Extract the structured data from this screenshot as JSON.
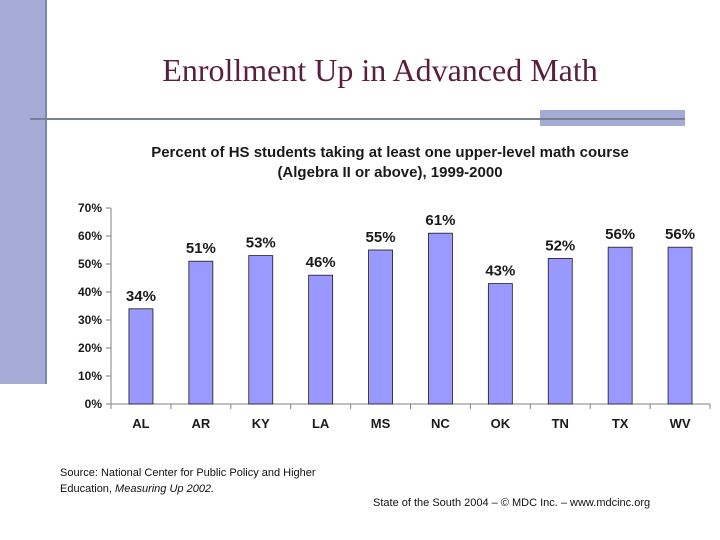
{
  "slide": {
    "title": "Enrollment Up in Advanced Math",
    "source_line1": "Source: National Center for Public Policy and Higher",
    "source_line2_prefix": "Education, ",
    "source_line2_italic": "Measuring Up 2002.",
    "footer": "State of the South 2004 – © MDC Inc. – www.mdcinc.org"
  },
  "chart_data": {
    "type": "bar",
    "title_line1": "Percent of HS students taking at least one upper-level math course",
    "title_line2": "(Algebra II or above), 1999-2000",
    "categories": [
      "AL",
      "AR",
      "KY",
      "LA",
      "MS",
      "NC",
      "OK",
      "TN",
      "TX",
      "WV"
    ],
    "values": [
      34,
      51,
      53,
      46,
      55,
      61,
      43,
      52,
      56,
      56
    ],
    "data_labels": [
      "34%",
      "51%",
      "53%",
      "46%",
      "55%",
      "61%",
      "43%",
      "52%",
      "56%",
      "56%"
    ],
    "yticks": [
      "0%",
      "10%",
      "20%",
      "30%",
      "40%",
      "50%",
      "60%",
      "70%"
    ],
    "ylim": [
      0,
      70
    ],
    "grid": false,
    "bar_color": "#9999ff"
  }
}
